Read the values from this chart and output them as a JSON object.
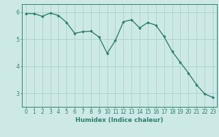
{
  "x": [
    0,
    1,
    2,
    3,
    4,
    5,
    6,
    7,
    8,
    9,
    10,
    11,
    12,
    13,
    14,
    15,
    16,
    17,
    18,
    19,
    20,
    21,
    22,
    23
  ],
  "y": [
    5.95,
    5.95,
    5.85,
    5.97,
    5.88,
    5.62,
    5.22,
    5.28,
    5.3,
    5.08,
    4.48,
    4.95,
    5.65,
    5.72,
    5.42,
    5.62,
    5.52,
    5.1,
    4.55,
    4.15,
    3.75,
    3.32,
    2.98,
    2.85
  ],
  "line_color": "#2e7d6e",
  "marker": "D",
  "marker_size": 1.8,
  "bg_color": "#cce9e5",
  "grid_color": "#aed4cf",
  "xlabel": "Humidex (Indice chaleur)",
  "xlim": [
    -0.5,
    23.5
  ],
  "ylim": [
    2.5,
    6.3
  ],
  "yticks": [
    3,
    4,
    5,
    6
  ],
  "xticks": [
    0,
    1,
    2,
    3,
    4,
    5,
    6,
    7,
    8,
    9,
    10,
    11,
    12,
    13,
    14,
    15,
    16,
    17,
    18,
    19,
    20,
    21,
    22,
    23
  ],
  "tick_color": "#2e7d6e",
  "label_fontsize": 6.5,
  "tick_fontsize": 5.5,
  "line_width": 1.0
}
